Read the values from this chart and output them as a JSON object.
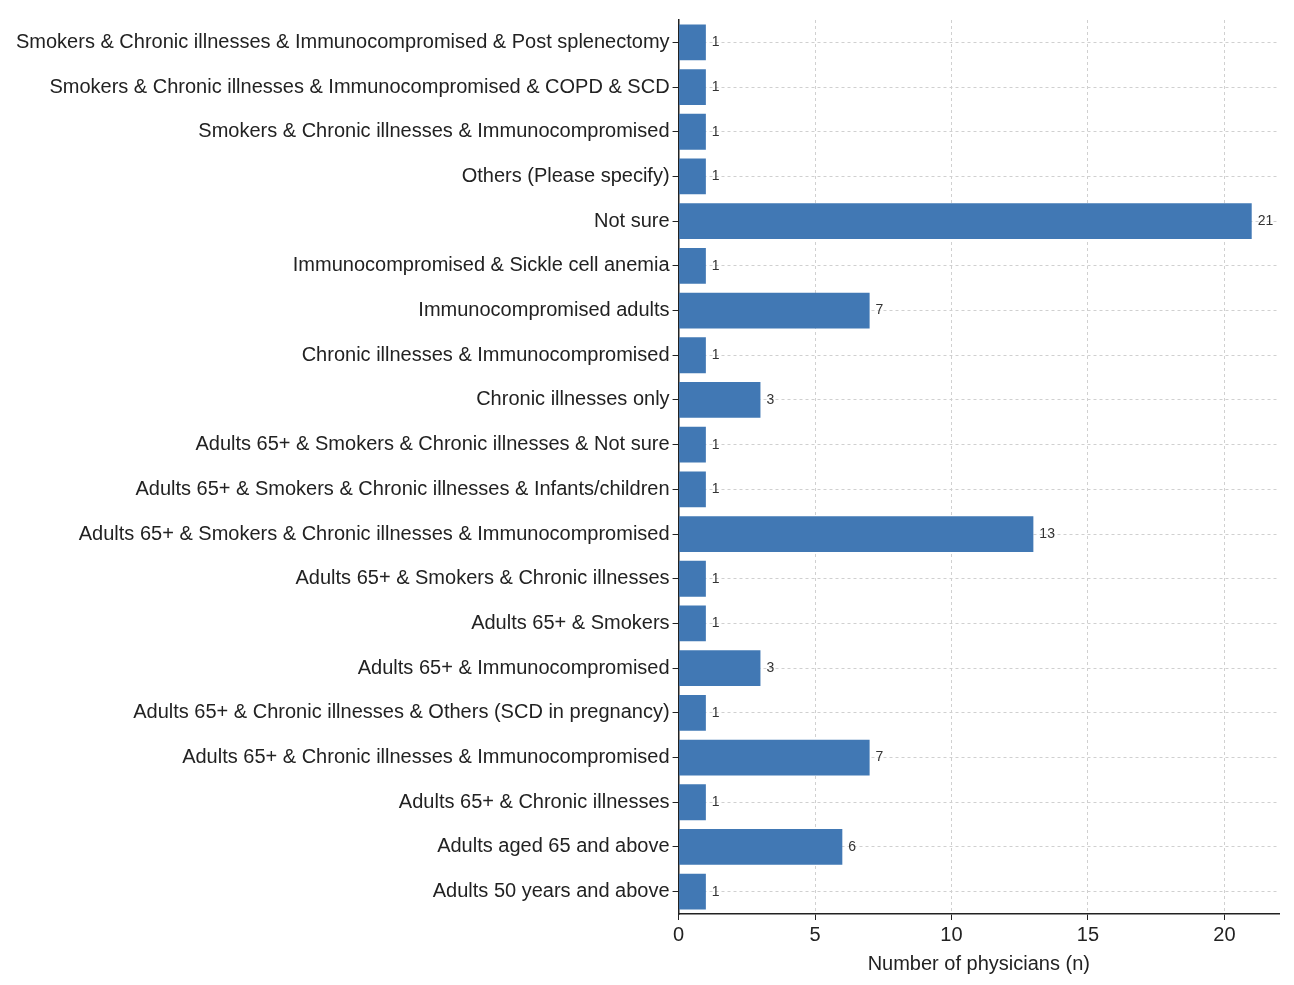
{
  "chart_data": {
    "type": "bar",
    "orientation": "horizontal",
    "xlabel": "Number of physicians (n)",
    "categories": [
      "Smokers & Chronic illnesses & Immunocompromised & Post splenectomy",
      "Smokers & Chronic illnesses & Immunocompromised & COPD & SCD",
      "Smokers & Chronic illnesses & Immunocompromised",
      "Others (Please specify)",
      "Not sure",
      "Immunocompromised & Sickle cell anemia",
      "Immunocompromised adults",
      "Chronic illnesses & Immunocompromised",
      "Chronic illnesses only",
      "Adults 65+ & Smokers & Chronic illnesses & Not sure",
      "Adults 65+ & Smokers & Chronic illnesses & Infants/children",
      "Adults 65+ & Smokers & Chronic illnesses & Immunocompromised",
      "Adults 65+ & Smokers & Chronic illnesses",
      "Adults 65+ & Smokers",
      "Adults 65+ & Immunocompromised",
      "Adults 65+ & Chronic illnesses & Others (SCD in pregnancy)",
      "Adults 65+ & Chronic illnesses & Immunocompromised",
      "Adults 65+ & Chronic illnesses",
      "Adults aged 65 and above",
      "Adults 50 years and above"
    ],
    "values": [
      1,
      1,
      1,
      1,
      21,
      1,
      7,
      1,
      3,
      1,
      1,
      13,
      1,
      1,
      3,
      1,
      7,
      1,
      6,
      1
    ],
    "color": "#4178b4",
    "xlim": [
      0,
      22
    ],
    "xticks": [
      0,
      5,
      10,
      15,
      20
    ],
    "grid": true,
    "data_labels": true
  }
}
